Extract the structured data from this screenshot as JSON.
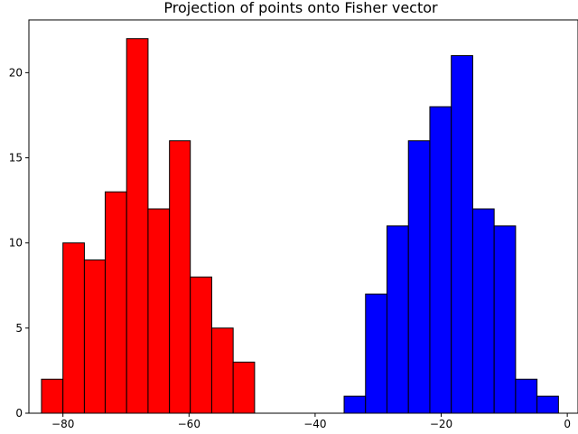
{
  "chart_data": {
    "type": "bar",
    "title": "Projection of points onto Fisher vector",
    "xlabel": "",
    "ylabel": "",
    "xlim": [
      -85.4,
      1.7
    ],
    "ylim": [
      0,
      23.1
    ],
    "xticks": [
      -80,
      -60,
      -40,
      -20,
      0
    ],
    "xtick_labels": [
      "−80",
      "−60",
      "−40",
      "−20",
      "0"
    ],
    "yticks": [
      0,
      5,
      10,
      15,
      20
    ],
    "ytick_labels": [
      "0",
      "5",
      "10",
      "15",
      "20"
    ],
    "grid": false,
    "legend": "none",
    "series": [
      {
        "color": "#ff0000",
        "bins": [
          {
            "x0": -83.4,
            "x1": -80.0,
            "count": 2
          },
          {
            "x0": -80.0,
            "x1": -76.6,
            "count": 10
          },
          {
            "x0": -76.6,
            "x1": -73.3,
            "count": 9
          },
          {
            "x0": -73.3,
            "x1": -69.9,
            "count": 13
          },
          {
            "x0": -69.9,
            "x1": -66.5,
            "count": 22
          },
          {
            "x0": -66.5,
            "x1": -63.1,
            "count": 12
          },
          {
            "x0": -63.1,
            "x1": -59.8,
            "count": 16
          },
          {
            "x0": -59.8,
            "x1": -56.4,
            "count": 8
          },
          {
            "x0": -56.4,
            "x1": -53.0,
            "count": 5
          },
          {
            "x0": -53.0,
            "x1": -49.6,
            "count": 3
          }
        ]
      },
      {
        "color": "#0000ff",
        "bins": [
          {
            "x0": -35.4,
            "x1": -32.0,
            "count": 1
          },
          {
            "x0": -32.0,
            "x1": -28.6,
            "count": 7
          },
          {
            "x0": -28.6,
            "x1": -25.2,
            "count": 11
          },
          {
            "x0": -25.2,
            "x1": -21.8,
            "count": 16
          },
          {
            "x0": -21.8,
            "x1": -18.4,
            "count": 18
          },
          {
            "x0": -18.4,
            "x1": -15.0,
            "count": 21
          },
          {
            "x0": -15.0,
            "x1": -11.6,
            "count": 12
          },
          {
            "x0": -11.6,
            "x1": -8.2,
            "count": 11
          },
          {
            "x0": -8.2,
            "x1": -4.8,
            "count": 2
          },
          {
            "x0": -4.8,
            "x1": -1.4,
            "count": 1
          }
        ]
      }
    ]
  }
}
